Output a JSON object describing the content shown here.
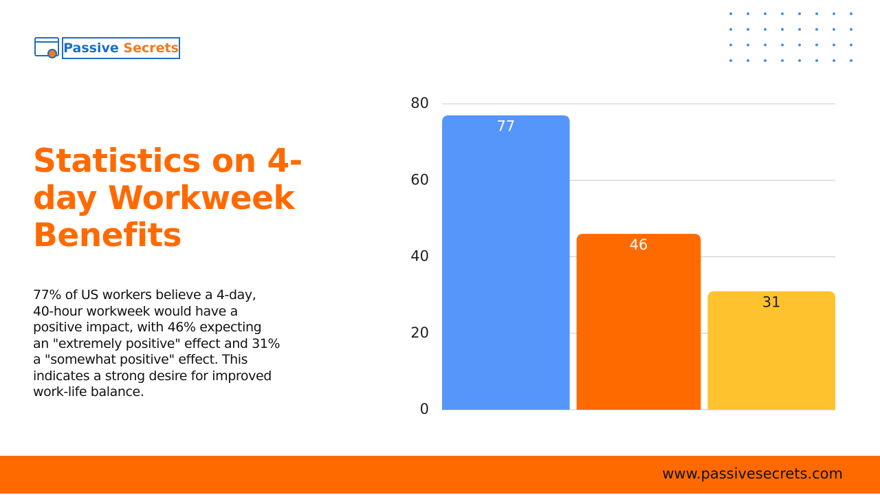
{
  "logo": {
    "word1": "Passive",
    "word2": "Secrets"
  },
  "heading": {
    "lines": [
      "Statistics on 4-",
      "day Workweek",
      "Benefits"
    ]
  },
  "body": {
    "lines": [
      "77% of US workers believe a 4-day,",
      "40-hour workweek would have a",
      "positive impact, with 46% expecting",
      "an \"extremely positive\" effect and 31%",
      "a \"somewhat positive\" effect. This",
      "indicates a strong desire for improved",
      "work-life balance."
    ]
  },
  "footer": {
    "url": "www.passivesecrets.com"
  },
  "chart_data": {
    "type": "bar",
    "categories": [
      null,
      null,
      null
    ],
    "values": [
      77,
      46,
      31
    ],
    "colors": [
      "#5596fb",
      "#ff6a00",
      "#ffc22f"
    ],
    "value_label_colors": [
      "#ffffff",
      "#ffffff",
      "#222222"
    ],
    "ylim": [
      0,
      80
    ],
    "yticks": [
      0,
      20,
      40,
      60,
      80
    ],
    "grid": true
  }
}
